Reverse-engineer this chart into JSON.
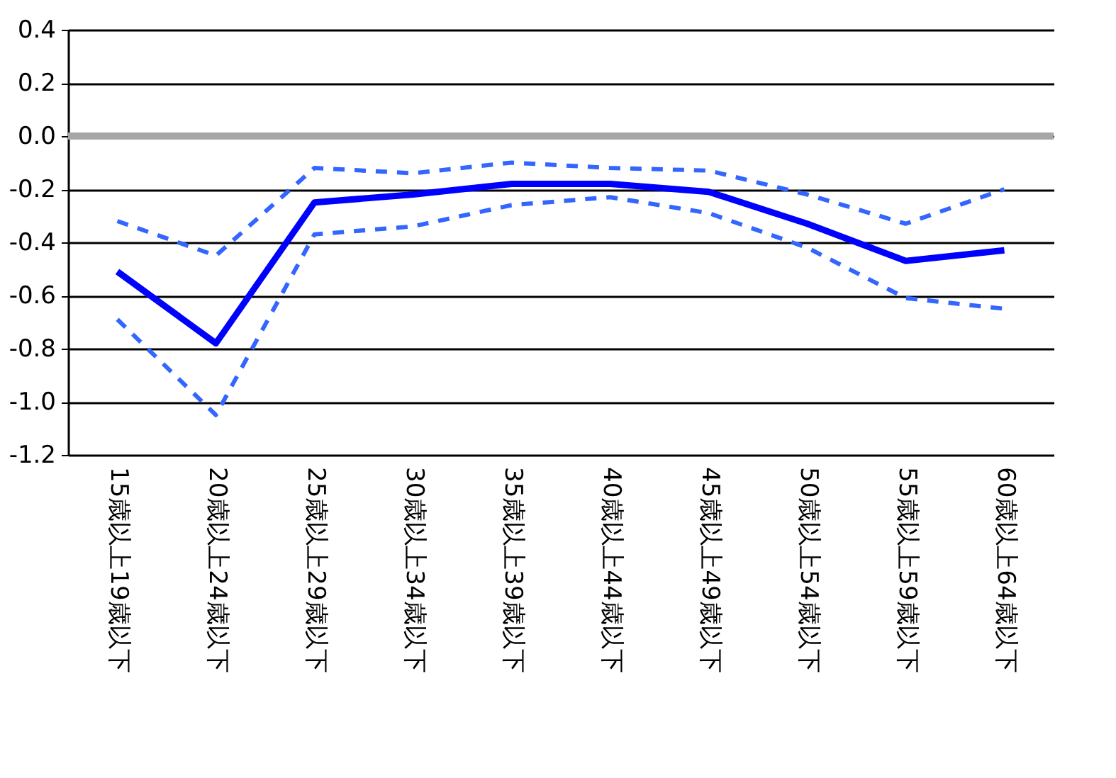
{
  "chart_data": {
    "type": "line",
    "categories": [
      "15歳以上19歳以下",
      "20歳以上24歳以下",
      "25歳以上29歳以下",
      "30歳以上34歳以下",
      "35歳以上39歳以下",
      "40歳以上44歳以下",
      "45歳以上49歳以下",
      "50歳以上54歳以下",
      "55歳以上59歳以下",
      "60歳以上64歳以下"
    ],
    "series": [
      {
        "color": "#3366ff",
        "line_style": "dashed",
        "values": [
          -0.69,
          -1.05,
          -0.37,
          -0.34,
          -0.26,
          -0.23,
          -0.29,
          -0.42,
          -0.61,
          -0.65
        ]
      },
      {
        "color": "#3366ff",
        "line_style": "dashed",
        "values": [
          -0.32,
          -0.45,
          -0.12,
          -0.14,
          -0.1,
          -0.12,
          -0.13,
          -0.22,
          -0.33,
          -0.2
        ]
      },
      {
        "color": "#0000ff",
        "line_style": "solid",
        "values": [
          -0.51,
          -0.78,
          -0.25,
          -0.22,
          -0.18,
          -0.18,
          -0.21,
          -0.33,
          -0.47,
          -0.43
        ]
      }
    ],
    "ylim": [
      -1.2,
      0.4
    ],
    "yticks": [
      {
        "value": -1.2,
        "label": "-1.2"
      },
      {
        "value": -1.0,
        "label": "-1.0"
      },
      {
        "value": -0.8,
        "label": "-0.8"
      },
      {
        "value": -0.6,
        "label": "-0.6"
      },
      {
        "value": -0.4,
        "label": "-0.4"
      },
      {
        "value": -0.2,
        "label": "-0.2"
      },
      {
        "value": 0,
        "label": "0.0"
      },
      {
        "value": 0.2,
        "label": "0.2"
      },
      {
        "value": 0.4,
        "label": "0.4"
      }
    ],
    "grid": "y",
    "marker": "none",
    "ref_lines": [
      {
        "axis": "y",
        "value": 0,
        "label": null,
        "color": "#a6a6a6"
      }
    ]
  }
}
